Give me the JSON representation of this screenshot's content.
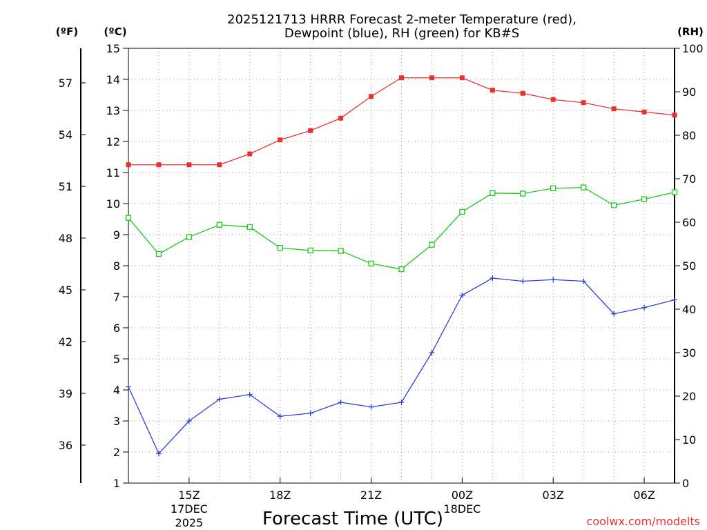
{
  "title_line1": "2025121713 HRRR Forecast 2-meter Temperature (red),",
  "title_line2": "Dewpoint (blue), RH (green) for KB#S",
  "credit": "coolwx.com/modelts",
  "colors": {
    "temperature": "#e8312f",
    "dewpoint": "#2b3fe0",
    "rh": "#16cc16",
    "grid": "#999999",
    "axis": "#000000"
  },
  "chart_data": {
    "type": "line",
    "title": "2025121713 HRRR Forecast 2-meter Temperature (red), Dewpoint (blue), RH (green) for KB#S",
    "xlabel": "Forecast Time (UTC)",
    "x_hours": [
      13,
      14,
      15,
      16,
      17,
      18,
      19,
      20,
      21,
      22,
      23,
      24,
      25,
      26,
      27,
      28,
      29,
      30,
      31
    ],
    "xlim": [
      13,
      31
    ],
    "x_ticks": [
      {
        "hour": 15,
        "lines": [
          "15Z",
          "17DEC",
          "2025"
        ]
      },
      {
        "hour": 18,
        "lines": [
          "18Z"
        ]
      },
      {
        "hour": 21,
        "lines": [
          "21Z"
        ]
      },
      {
        "hour": 24,
        "lines": [
          "00Z",
          "18DEC"
        ]
      },
      {
        "hour": 27,
        "lines": [
          "03Z"
        ]
      },
      {
        "hour": 30,
        "lines": [
          "06Z"
        ]
      }
    ],
    "left_axis_c": {
      "unit_label": "(ºC)",
      "range": [
        1,
        15
      ],
      "ticks": [
        "1",
        "2",
        "3",
        "4",
        "5",
        "6",
        "7",
        "8",
        "9",
        "10",
        "11",
        "12",
        "13",
        "14",
        "15"
      ]
    },
    "left_axis_f": {
      "unit_label": "(ºF)",
      "ticks": [
        "36",
        "39",
        "42",
        "45",
        "48",
        "51",
        "54",
        "57"
      ]
    },
    "right_axis_rh": {
      "unit_label": "(RH)",
      "range": [
        0,
        100
      ],
      "ticks": [
        "0",
        "10",
        "20",
        "30",
        "40",
        "50",
        "60",
        "70",
        "80",
        "90",
        "100"
      ]
    },
    "series": [
      {
        "name": "Temperature",
        "axis": "C",
        "marker": "filled-square",
        "values": [
          11.25,
          11.25,
          11.25,
          11.25,
          11.6,
          12.05,
          12.35,
          12.75,
          13.45,
          14.05,
          14.05,
          14.05,
          13.65,
          13.55,
          13.35,
          13.25,
          13.05,
          12.95,
          12.85
        ]
      },
      {
        "name": "Dewpoint",
        "axis": "C",
        "marker": "plus",
        "values": [
          4.1,
          1.95,
          3.0,
          3.7,
          3.85,
          3.15,
          3.25,
          3.6,
          3.45,
          3.6,
          5.2,
          7.05,
          7.6,
          7.5,
          7.55,
          7.5,
          6.45,
          6.65,
          6.9
        ]
      },
      {
        "name": "RH",
        "axis": "RH",
        "marker": "open-square",
        "values": [
          61,
          52.7,
          56.6,
          59.4,
          58.9,
          54.1,
          53.5,
          53.4,
          50.5,
          49.2,
          54.8,
          62.4,
          66.7,
          66.6,
          67.8,
          68.0,
          63.9,
          65.3,
          66.9
        ]
      }
    ]
  }
}
